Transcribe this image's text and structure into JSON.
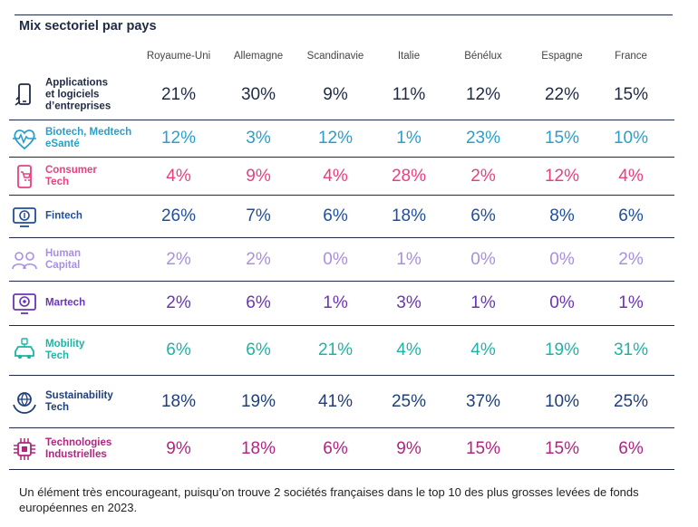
{
  "chart_data": {
    "type": "table",
    "title": "Mix sectoriel par pays",
    "columns": [
      "Royaume-Uni",
      "Allemagne",
      "Scandinavie",
      "Italie",
      "Bénélux",
      "Espagne",
      "France"
    ],
    "rows": [
      {
        "label": "Applications et logiciels d’entreprises",
        "label_lines": [
          "Applications",
          "et logiciels",
          "d’entreprises"
        ],
        "icon": "smartphone-icon",
        "color": "#1f2a44",
        "values": [
          "21%",
          "30%",
          "9%",
          "11%",
          "12%",
          "22%",
          "15%"
        ]
      },
      {
        "label": "Biotech, Medtech eSanté",
        "label_lines": [
          "Biotech, Medtech",
          "eSanté"
        ],
        "icon": "heartbeat-icon",
        "color": "#2a9fc9",
        "values": [
          "12%",
          "3%",
          "12%",
          "1%",
          "23%",
          "15%",
          "10%"
        ]
      },
      {
        "label": "Consumer Tech",
        "label_lines": [
          "Consumer",
          "Tech"
        ],
        "icon": "cart-phone-icon",
        "color": "#e8407f",
        "values": [
          "4%",
          "9%",
          "4%",
          "28%",
          "2%",
          "12%",
          "4%"
        ]
      },
      {
        "label": "Fintech",
        "label_lines": [
          "Fintech"
        ],
        "icon": "coin-monitor-icon",
        "color": "#1f4e9c",
        "values": [
          "26%",
          "7%",
          "6%",
          "18%",
          "6%",
          "8%",
          "6%"
        ]
      },
      {
        "label": "Human Capital",
        "label_lines": [
          "Human",
          "Capital"
        ],
        "icon": "people-icon",
        "color": "#a98fe0",
        "values": [
          "2%",
          "2%",
          "0%",
          "1%",
          "0%",
          "0%",
          "2%"
        ]
      },
      {
        "label": "Martech",
        "label_lines": [
          "Martech"
        ],
        "icon": "target-screen-icon",
        "color": "#6a35b5",
        "values": [
          "2%",
          "6%",
          "1%",
          "3%",
          "1%",
          "0%",
          "1%"
        ]
      },
      {
        "label": "Mobility Tech",
        "label_lines": [
          "Mobility",
          "Tech"
        ],
        "icon": "car-icon",
        "color": "#1fb3a6",
        "values": [
          "6%",
          "6%",
          "21%",
          "4%",
          "4%",
          "19%",
          "31%"
        ]
      },
      {
        "label": "Sustainability Tech",
        "label_lines": [
          "Sustainability",
          "Tech"
        ],
        "icon": "globe-hands-icon",
        "color": "#1f3f7a",
        "values": [
          "18%",
          "19%",
          "41%",
          "25%",
          "37%",
          "10%",
          "25%"
        ]
      },
      {
        "label": "Technologies Industrielles",
        "label_lines": [
          "Technologies",
          "Industrielles"
        ],
        "icon": "chip-icon",
        "color": "#b0257f",
        "values": [
          "9%",
          "18%",
          "6%",
          "9%",
          "15%",
          "15%",
          "6%"
        ]
      }
    ]
  },
  "footnote": "Un élément très encourageant, puisqu’on trouve 2 sociétés françaises dans le top 10 des plus grosses levées de fonds européennes en 2023."
}
